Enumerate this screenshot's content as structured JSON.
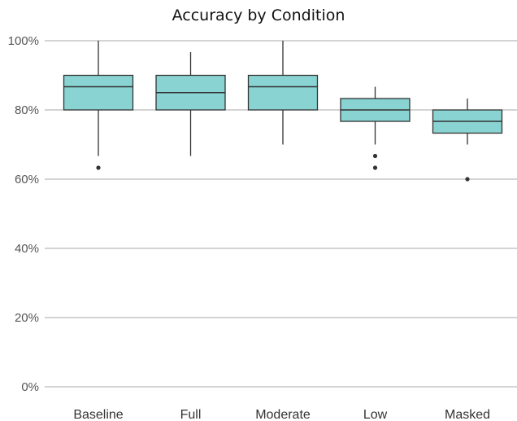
{
  "chart_data": {
    "type": "box",
    "title": "Accuracy by Condition",
    "xlabel": "",
    "ylabel": "",
    "y_unit": "percent",
    "ylim": [
      0,
      100
    ],
    "yticks": [
      0,
      20,
      40,
      60,
      80,
      100
    ],
    "ytick_labels": [
      "0%",
      "20%",
      "40%",
      "60%",
      "80%",
      "100%"
    ],
    "grid": "horizontal",
    "box_color": "#89d3d3",
    "line_color": "#333333",
    "grid_color": "#aaaaaa",
    "categories": [
      "Baseline",
      "Full",
      "Moderate",
      "Low",
      "Masked"
    ],
    "boxes": [
      {
        "label": "Baseline",
        "whisker_low": 66.7,
        "q1": 80.0,
        "median": 86.7,
        "q3": 90.0,
        "whisker_high": 100.0,
        "outliers": [
          63.3
        ]
      },
      {
        "label": "Full",
        "whisker_low": 66.7,
        "q1": 80.0,
        "median": 85.0,
        "q3": 90.0,
        "whisker_high": 96.7,
        "outliers": []
      },
      {
        "label": "Moderate",
        "whisker_low": 70.0,
        "q1": 80.0,
        "median": 86.7,
        "q3": 90.0,
        "whisker_high": 100.0,
        "outliers": []
      },
      {
        "label": "Low",
        "whisker_low": 70.0,
        "q1": 76.7,
        "median": 80.0,
        "q3": 83.3,
        "whisker_high": 86.7,
        "outliers": [
          66.7,
          63.3
        ]
      },
      {
        "label": "Masked",
        "whisker_low": 70.0,
        "q1": 73.3,
        "median": 76.7,
        "q3": 80.0,
        "whisker_high": 83.3,
        "outliers": [
          60.0
        ]
      }
    ]
  }
}
